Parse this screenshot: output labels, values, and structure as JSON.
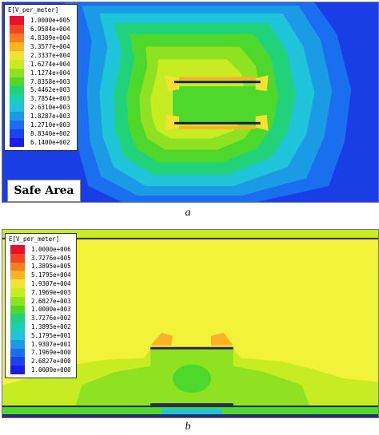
{
  "figure_a": {
    "legend": {
      "title": "E[V_per_meter]",
      "entries": [
        {
          "label": "1.0000e+005",
          "color": "#e8102a"
        },
        {
          "label": "6.9584e+004",
          "color": "#f04422"
        },
        {
          "label": "4.8389e+004",
          "color": "#f87d22"
        },
        {
          "label": "3.3577e+004",
          "color": "#fbb324"
        },
        {
          "label": "2.3337e+004",
          "color": "#f4e233"
        },
        {
          "label": "1.6274e+004",
          "color": "#c8ec22"
        },
        {
          "label": "1.1274e+004",
          "color": "#8fe222"
        },
        {
          "label": "7.8358e+003",
          "color": "#4ed82c"
        },
        {
          "label": "5.4462e+003",
          "color": "#22d27a"
        },
        {
          "label": "3.7854e+003",
          "color": "#1ccfb0"
        },
        {
          "label": "2.6310e+003",
          "color": "#1fc3da"
        },
        {
          "label": "1.8287e+003",
          "color": "#1b9be6"
        },
        {
          "label": "1.2710e+003",
          "color": "#1a6ff0"
        },
        {
          "label": "8.8340e+002",
          "color": "#1c44ee"
        },
        {
          "label": "6.1400e+002",
          "color": "#1a1ee0"
        }
      ]
    },
    "annotation": "Safe Area",
    "caption": "a"
  },
  "figure_b": {
    "legend": {
      "title": "E[V_per_meter]",
      "entries": [
        {
          "label": "1.0000e+006",
          "color": "#e8102a"
        },
        {
          "label": "3.7276e+005",
          "color": "#f04422"
        },
        {
          "label": "1.3895e+005",
          "color": "#f87d22"
        },
        {
          "label": "5.1795e+004",
          "color": "#fbb324"
        },
        {
          "label": "1.9307e+004",
          "color": "#f4e233"
        },
        {
          "label": "7.1969e+003",
          "color": "#c8ec22"
        },
        {
          "label": "2.6827e+003",
          "color": "#8fe222"
        },
        {
          "label": "1.0000e+003",
          "color": "#4ed82c"
        },
        {
          "label": "3.7276e+002",
          "color": "#22d27a"
        },
        {
          "label": "1.3895e+002",
          "color": "#1ccfb0"
        },
        {
          "label": "5.1795e+001",
          "color": "#1fc3da"
        },
        {
          "label": "1.9307e+001",
          "color": "#1b9be6"
        },
        {
          "label": "7.1969e+000",
          "color": "#1a6ff0"
        },
        {
          "label": "2.6827e+000",
          "color": "#1c44ee"
        },
        {
          "label": "1.0000e+000",
          "color": "#1a1ee0"
        }
      ]
    },
    "caption": "b"
  }
}
